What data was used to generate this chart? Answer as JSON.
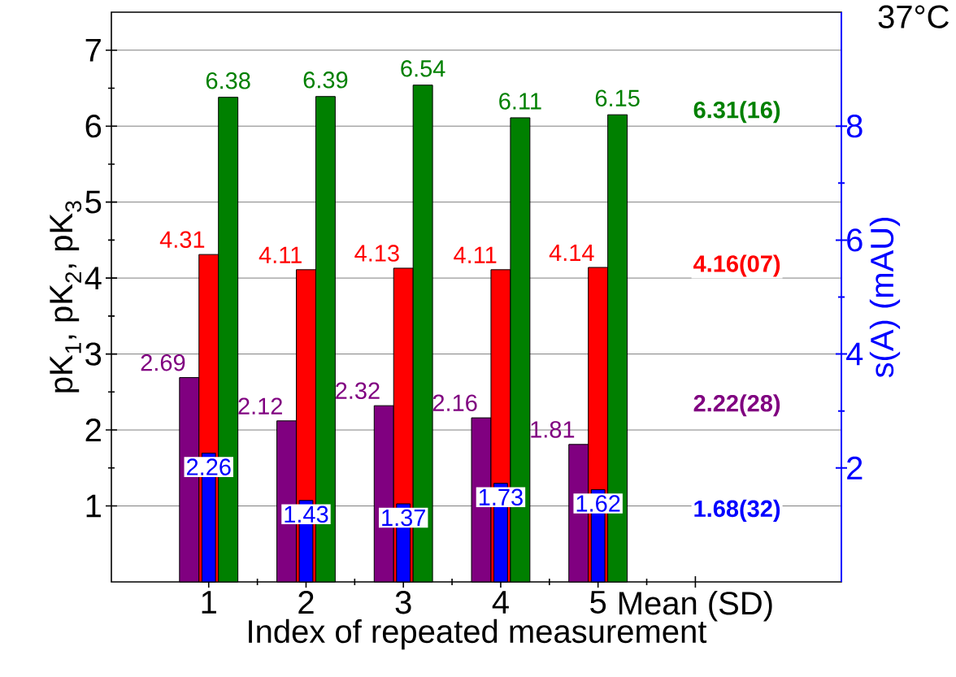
{
  "chart_data": {
    "type": "bar",
    "title": "37°C",
    "xlabel": "Index of repeated measurement",
    "ylabel": "pK$_{1}$, pK$_{2}$, pK$_{3}$",
    "y2label": "s(A) (mAU)",
    "categories": [
      "1",
      "2",
      "3",
      "4",
      "5",
      "Mean (SD)"
    ],
    "series": [
      {
        "color": "#800080",
        "values": [
          2.69,
          2.12,
          2.32,
          2.16,
          1.81,
          null
        ]
      },
      {
        "color": "#ff0000",
        "values": [
          4.31,
          4.11,
          4.13,
          4.11,
          4.14,
          null
        ]
      },
      {
        "color": "#008000",
        "values": [
          6.38,
          6.39,
          6.54,
          6.11,
          6.15,
          null
        ]
      },
      {
        "color": "#0000ff",
        "axis": "y2",
        "values": [
          2.26,
          1.43,
          1.37,
          1.73,
          1.62,
          null
        ]
      }
    ],
    "ylim": [
      0,
      7.5
    ],
    "yticks": [
      1,
      2,
      3,
      4,
      5,
      6,
      7
    ],
    "y2lim": [
      0,
      10
    ],
    "y2ticks": [
      2,
      4,
      6,
      8
    ],
    "grid": "y",
    "data_labels": true,
    "annotations": [
      "2.22(28)",
      "4.16(07)",
      "6.31(16)",
      "1.68(32)"
    ]
  }
}
